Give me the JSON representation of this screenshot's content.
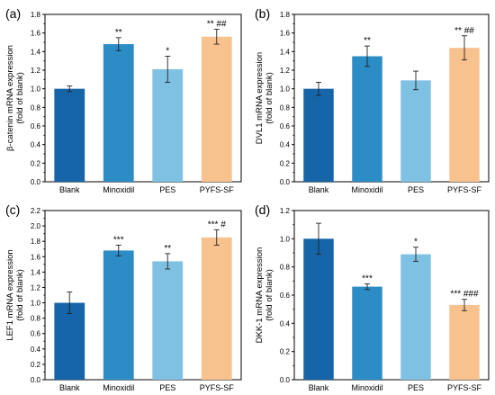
{
  "colors": [
    "#1565a8",
    "#2b8cc6",
    "#7ec1e3",
    "#f8c28f"
  ],
  "chart_data": [
    {
      "type": "bar",
      "panel": "(a)",
      "categories": [
        "Blank",
        "Minoxidil",
        "PES",
        "PYFS-SF"
      ],
      "values": [
        1.0,
        1.48,
        1.21,
        1.56
      ],
      "errors": [
        0.03,
        0.07,
        0.14,
        0.08
      ],
      "annotations": [
        "",
        "**",
        "*",
        "** ##"
      ],
      "ylabel": "β-catenin mRNA expression",
      "ylabel2": "(fold of blank)",
      "ylim": [
        0,
        1.8
      ],
      "yticks": [
        "0.0",
        "0.2",
        "0.4",
        "0.6",
        "0.8",
        "1.0",
        "1.2",
        "1.4",
        "1.6",
        "1.8"
      ]
    },
    {
      "type": "bar",
      "panel": "(b)",
      "categories": [
        "Blank",
        "Minoxidil",
        "PES",
        "PYFS-SF"
      ],
      "values": [
        1.0,
        1.35,
        1.09,
        1.44
      ],
      "errors": [
        0.07,
        0.11,
        0.1,
        0.13
      ],
      "annotations": [
        "",
        "**",
        "",
        "** ##"
      ],
      "ylabel": "DVL1 mRNA expression",
      "ylabel2": "(fold of blank)",
      "ylim": [
        0,
        1.8
      ],
      "yticks": [
        "0.0",
        "0.2",
        "0.4",
        "0.6",
        "0.8",
        "1.0",
        "1.2",
        "1.4",
        "1.6",
        "1.8"
      ]
    },
    {
      "type": "bar",
      "panel": "(c)",
      "categories": [
        "Blank",
        "Minoxidil",
        "PES",
        "PYFS-SF"
      ],
      "values": [
        1.0,
        1.68,
        1.54,
        1.85
      ],
      "errors": [
        0.14,
        0.07,
        0.1,
        0.1
      ],
      "annotations": [
        "",
        "***",
        "**",
        "*** #"
      ],
      "ylabel": "LEF1 mRNA expression",
      "ylabel2": "(fold of blank)",
      "ylim": [
        0,
        2.2
      ],
      "yticks": [
        "0.0",
        "0.2",
        "0.4",
        "0.6",
        "0.8",
        "1.0",
        "1.2",
        "1.4",
        "1.6",
        "1.8",
        "2.0",
        "2.2"
      ]
    },
    {
      "type": "bar",
      "panel": "(d)",
      "categories": [
        "Blank",
        "Minoxidil",
        "PES",
        "PYFS-SF"
      ],
      "values": [
        1.0,
        0.66,
        0.89,
        0.53
      ],
      "errors": [
        0.11,
        0.02,
        0.05,
        0.04
      ],
      "annotations": [
        "",
        "***",
        "*",
        "*** ###"
      ],
      "ylabel": "DKK-1 mRNA expression",
      "ylabel2": "(fold of blank)",
      "ylim": [
        0,
        1.2
      ],
      "yticks": [
        "0.0",
        "0.2",
        "0.4",
        "0.6",
        "0.8",
        "1.0",
        "1.2"
      ]
    }
  ]
}
